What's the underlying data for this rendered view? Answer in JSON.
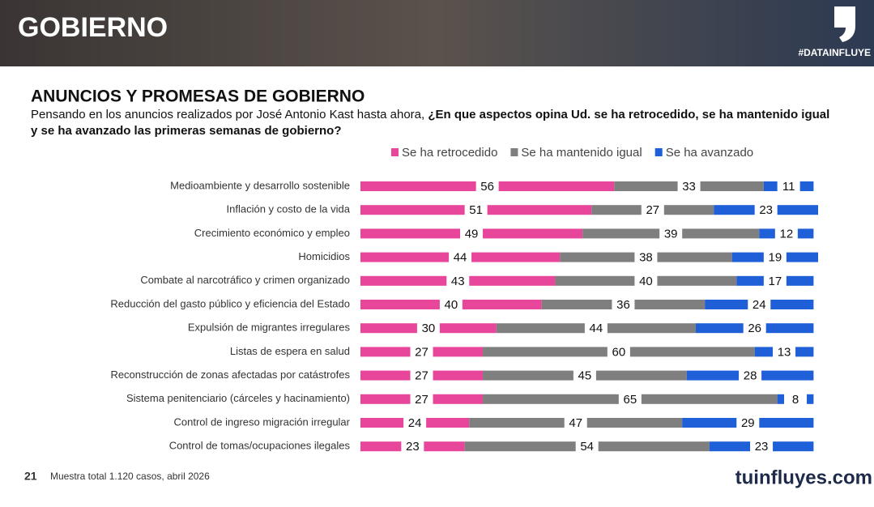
{
  "header": {
    "section": "GOBIERNO",
    "hashtag": "#DATAINFLUYE"
  },
  "chart_data": {
    "type": "stacked-bar-horizontal",
    "title": "ANUNCIOS Y PROMESAS DE GOBIERNO",
    "subtitle": "Pensando en los anuncios realizados por José Antonio Kast hasta ahora,",
    "question": "¿En que aspectos opina Ud. se ha retrocedido, se ha mantenido igual y se ha avanzado las primeras semanas de gobierno?",
    "categories": [
      "Medioambiente y desarrollo sostenible",
      "Inflación y costo de la vida",
      "Crecimiento económico y empleo",
      "Homicidios",
      "Combate al narcotráfico y crimen organizado",
      "Reducción del gasto público y eficiencia del Estado",
      "Expulsión de migrantes irregulares",
      "Listas de espera en salud",
      "Reconstrucción de zonas afectadas por catástrofes",
      "Sistema penitenciario (cárceles y hacinamiento)",
      "Control de ingreso migración irregular",
      "Control de tomas/ocupaciones ilegales"
    ],
    "series": [
      {
        "name": "Se ha retrocedido",
        "color": "#e8469b",
        "values": [
          56,
          51,
          49,
          44,
          43,
          40,
          30,
          27,
          27,
          27,
          24,
          23
        ]
      },
      {
        "name": "Se ha mantenido igual",
        "color": "#7f7f7f",
        "values": [
          33,
          27,
          39,
          38,
          40,
          36,
          44,
          60,
          45,
          65,
          47,
          54
        ]
      },
      {
        "name": "Se ha avanzado",
        "color": "#1f5fd8",
        "values": [
          11,
          23,
          12,
          19,
          17,
          24,
          26,
          13,
          28,
          8,
          29,
          23
        ]
      }
    ]
  },
  "footer": {
    "page": 21,
    "note": "Muestra total 1.120 casos, abril 2026",
    "brand": "tuinfluyes.com"
  }
}
